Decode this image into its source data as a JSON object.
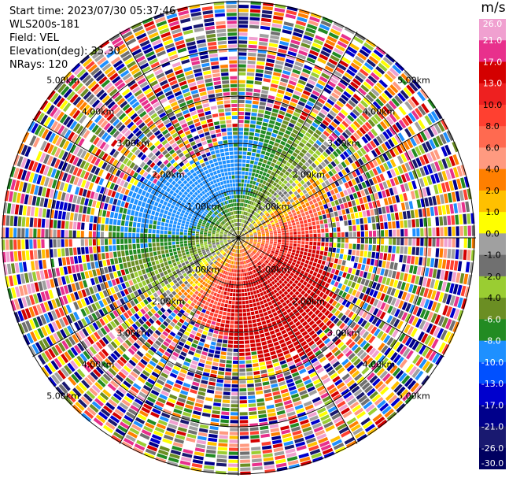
{
  "header": {
    "start_time": "Start time: 2023/07/30 05:37:46",
    "instrument": "WLS200s-181",
    "field": "Field: VEL",
    "elevation": "Elevation(deg): 35.30",
    "nrays": "NRays: 120"
  },
  "chart_data": {
    "type": "heatmap",
    "projection": "polar-ppi",
    "grid": true,
    "range_ring_labels": [
      "1.00km",
      "2.00km",
      "3.00km",
      "4.00km",
      "5.00km"
    ],
    "azimuth_spokes_deg": [
      0,
      30,
      60,
      90,
      120,
      150,
      180,
      210,
      240,
      270,
      300,
      330
    ],
    "colorbar": {
      "unit": "m/s",
      "tick_labels": [
        "26.0",
        "21.0",
        "17.0",
        "13.0",
        "10.0",
        "8.0",
        "6.0",
        "4.0",
        "2.0",
        "1.0",
        "0.0",
        "-1.0",
        "-2.0",
        "-4.0",
        "-6.0",
        "-8.0",
        "-10.0",
        "-13.0",
        "-17.0",
        "-21.0",
        "-26.0",
        "-30.0"
      ],
      "colors": [
        "#f0a0d0",
        "#e8308c",
        "#d40000",
        "#ee2020",
        "#ff4030",
        "#ff6a50",
        "#ff9a80",
        "#ff7f00",
        "#ffc000",
        "#ffff00",
        "#a0a0a0",
        "#707070",
        "#9acd32",
        "#6b8e23",
        "#228b22",
        "#1e90ff",
        "#0050ff",
        "#0000cd",
        "#00008b",
        "#191970",
        "#000060"
      ],
      "placement": "right"
    }
  }
}
